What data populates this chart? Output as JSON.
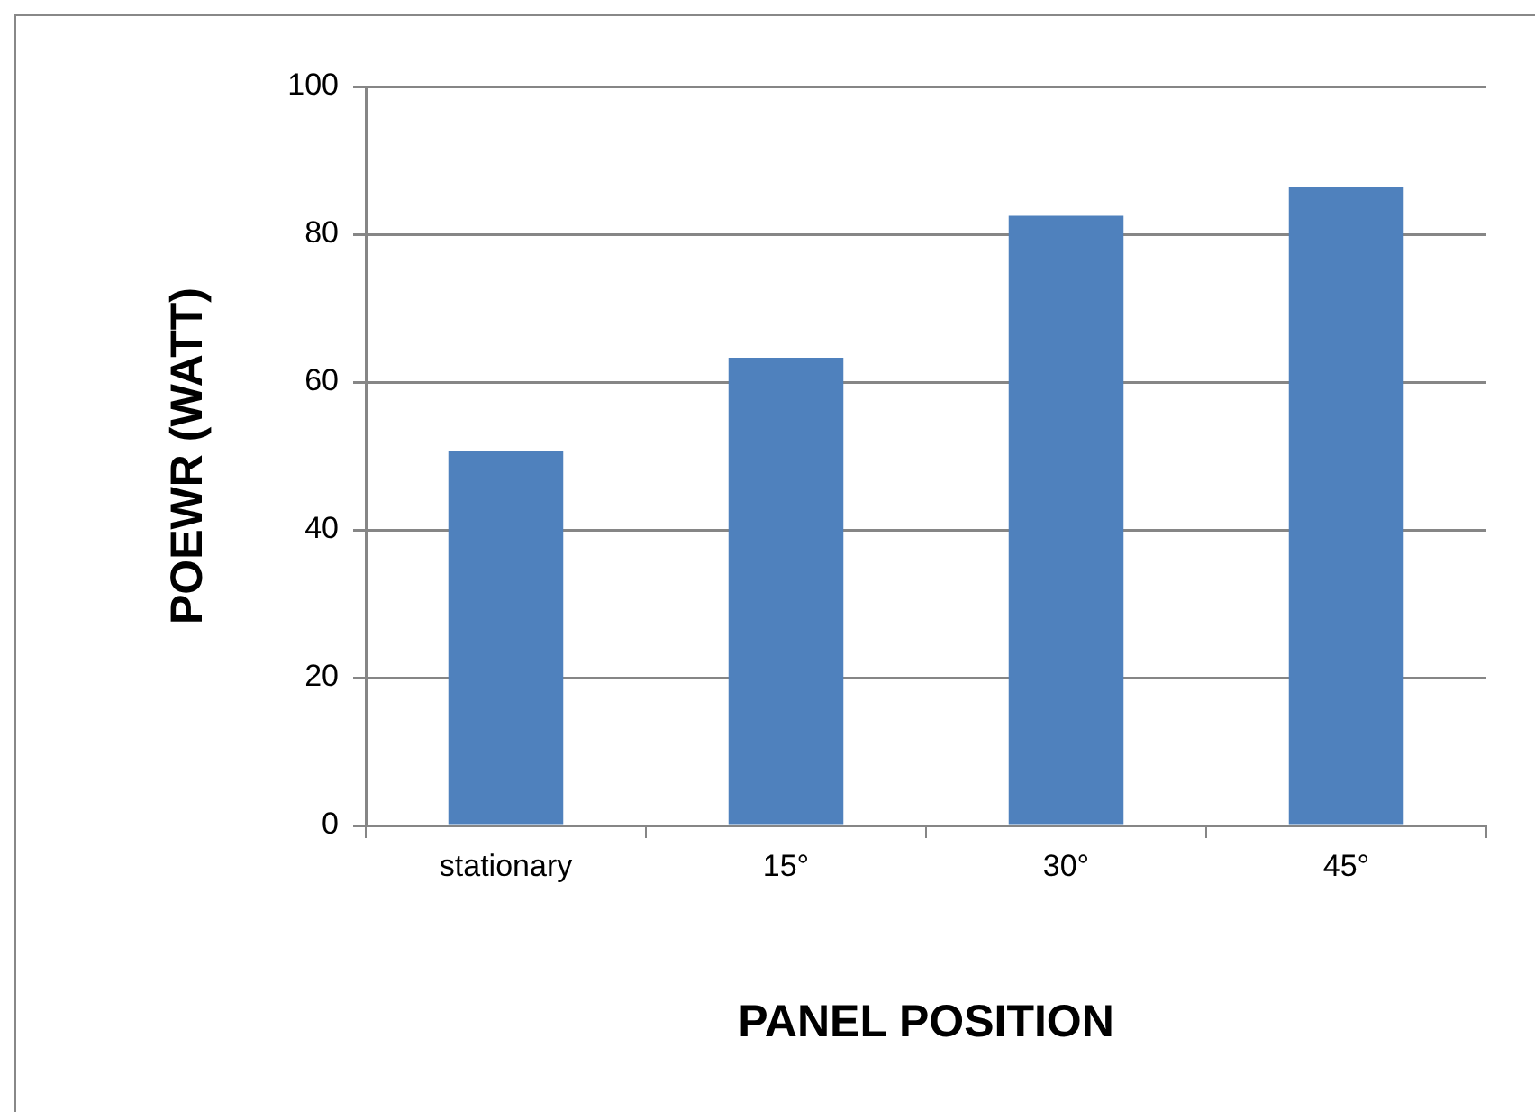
{
  "chart_data": {
    "type": "bar",
    "xlabel": "PANEL POSITION",
    "ylabel": "POEWR (WATT)",
    "categories": [
      "stationary",
      "15°",
      "30°",
      "45°"
    ],
    "values": [
      50.6,
      63.3,
      82.5,
      86.4
    ],
    "color": "#4f81bd",
    "ylim": [
      0,
      100
    ],
    "yticks": [
      0,
      20,
      40,
      60,
      80,
      100
    ],
    "grid": "y",
    "legend": false
  }
}
